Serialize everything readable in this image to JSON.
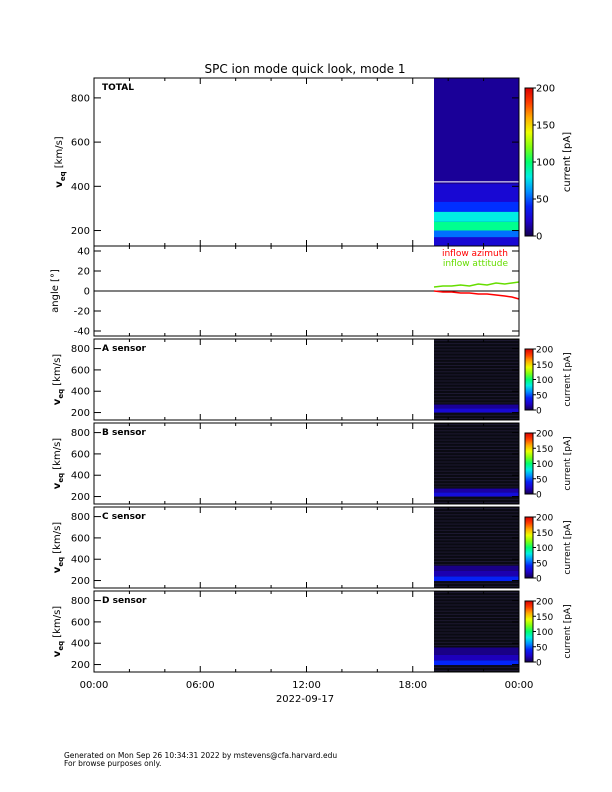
{
  "figure": {
    "title": "SPC ion mode quick look, mode 1",
    "date_label": "2022-09-17",
    "footer_line1": "Generated on Mon Sep 26 10:34:31 2022 by mstevens@cfa.harvard.edu",
    "footer_line2": "For browse purposes only."
  },
  "chart_data": [
    {
      "type": "heatmap",
      "panel": "TOTAL",
      "label": "TOTAL",
      "ylabel": "v",
      "ylabel_sub": "eq",
      "ylabel_unit": "[km/s]",
      "ylim": [
        130,
        890
      ],
      "yticks": [
        200,
        400,
        600,
        800
      ],
      "x_range_hours": [
        0,
        24
      ],
      "data_start_hour": 19.2,
      "colorbar": {
        "label": "current [pA]",
        "ticks": [
          0,
          50,
          100,
          150,
          200
        ],
        "range": [
          0,
          200
        ]
      },
      "bands": [
        {
          "v": [
            130,
            170
          ],
          "level": 25
        },
        {
          "v": [
            170,
            200
          ],
          "level": 55
        },
        {
          "v": [
            200,
            240
          ],
          "level": 95
        },
        {
          "v": [
            240,
            285
          ],
          "level": 80
        },
        {
          "v": [
            285,
            330
          ],
          "level": 45
        },
        {
          "v": [
            330,
            410
          ],
          "level": 25
        },
        {
          "v": [
            410,
            890
          ],
          "level": 12
        }
      ]
    },
    {
      "type": "line",
      "panel": "angle",
      "ylabel": "angle [°]",
      "ylim": [
        -45,
        45
      ],
      "yticks": [
        -40,
        -20,
        0,
        20,
        40
      ],
      "x_range_hours": [
        0,
        24
      ],
      "series": [
        {
          "name": "inflow azimuth",
          "color": "#ff0000",
          "x": [
            19.2,
            19.7,
            20.2,
            20.7,
            21.2,
            21.7,
            22.2,
            22.7,
            23.2,
            23.6,
            24.0
          ],
          "values": [
            0,
            -1,
            -1,
            -2,
            -2,
            -3,
            -3,
            -4,
            -5,
            -6,
            -8
          ]
        },
        {
          "name": "inflow attitude",
          "color": "#66dd00",
          "x": [
            19.2,
            19.7,
            20.2,
            20.7,
            21.2,
            21.7,
            22.2,
            22.7,
            23.2,
            23.6,
            24.0
          ],
          "values": [
            4,
            5,
            5,
            6,
            5,
            7,
            6,
            8,
            7,
            8,
            9
          ]
        }
      ]
    },
    {
      "type": "heatmap",
      "panel": "A sensor",
      "label": "A sensor",
      "ylabel": "v",
      "ylabel_sub": "eq",
      "ylabel_unit": "[km/s]",
      "ylim": [
        130,
        890
      ],
      "yticks": [
        200,
        400,
        600,
        800
      ],
      "x_range_hours": [
        0,
        24
      ],
      "data_start_hour": 19.2,
      "colorbar": {
        "label": "current [pA]",
        "ticks": [
          0,
          50,
          100,
          150,
          200
        ],
        "range": [
          0,
          200
        ]
      },
      "bands": [
        {
          "v": [
            200,
            240
          ],
          "level": 25
        },
        {
          "v": [
            240,
            275
          ],
          "level": 12
        }
      ]
    },
    {
      "type": "heatmap",
      "panel": "B sensor",
      "label": "B sensor",
      "ylabel": "v",
      "ylabel_sub": "eq",
      "ylabel_unit": "[km/s]",
      "ylim": [
        130,
        890
      ],
      "yticks": [
        200,
        400,
        600,
        800
      ],
      "x_range_hours": [
        0,
        24
      ],
      "data_start_hour": 19.2,
      "colorbar": {
        "label": "current [pA]",
        "ticks": [
          0,
          50,
          100,
          150,
          200
        ],
        "range": [
          0,
          200
        ]
      },
      "bands": [
        {
          "v": [
            200,
            240
          ],
          "level": 28
        },
        {
          "v": [
            240,
            275
          ],
          "level": 14
        }
      ]
    },
    {
      "type": "heatmap",
      "panel": "C sensor",
      "label": "C sensor",
      "ylabel": "v",
      "ylabel_sub": "eq",
      "ylabel_unit": "[km/s]",
      "ylim": [
        130,
        890
      ],
      "yticks": [
        200,
        400,
        600,
        800
      ],
      "x_range_hours": [
        0,
        24
      ],
      "data_start_hour": 19.2,
      "colorbar": {
        "label": "current [pA]",
        "ticks": [
          0,
          50,
          100,
          150,
          200
        ],
        "range": [
          0,
          200
        ]
      },
      "bands": [
        {
          "v": [
            195,
            240
          ],
          "level": 40
        },
        {
          "v": [
            240,
            290
          ],
          "level": 16
        },
        {
          "v": [
            290,
            340
          ],
          "level": 9
        }
      ]
    },
    {
      "type": "heatmap",
      "panel": "D sensor",
      "label": "D sensor",
      "ylabel": "v",
      "ylabel_sub": "eq",
      "ylabel_unit": "[km/s]",
      "ylim": [
        130,
        890
      ],
      "yticks": [
        200,
        400,
        600,
        800
      ],
      "x_range_hours": [
        0,
        24
      ],
      "data_start_hour": 19.2,
      "colorbar": {
        "label": "current [pA]",
        "ticks": [
          0,
          50,
          100,
          150,
          200
        ],
        "range": [
          0,
          200
        ]
      },
      "bands": [
        {
          "v": [
            195,
            240
          ],
          "level": 42
        },
        {
          "v": [
            240,
            290
          ],
          "level": 18
        },
        {
          "v": [
            290,
            360
          ],
          "level": 9
        }
      ]
    }
  ],
  "x_axis": {
    "tick_hours": [
      0,
      6,
      12,
      18,
      24
    ],
    "tick_labels": [
      "00:00",
      "06:00",
      "12:00",
      "18:00",
      "00:00"
    ]
  }
}
